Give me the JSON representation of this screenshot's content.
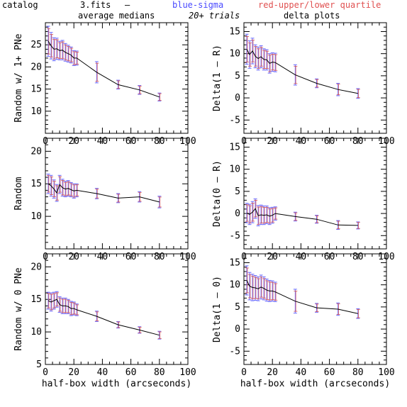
{
  "header": {
    "left": "catalog",
    "col1": "average medians",
    "fits": "3.fits",
    "dash": "–",
    "blue": "blue-sigma",
    "red": "red-upper/lower quartile",
    "trials": "20+ trials",
    "col2": "delta plots"
  },
  "colors": {
    "line": "#000000",
    "sigma": "#6a6aff",
    "quartile": "#d44a4a"
  },
  "chart_data": [
    {
      "type": "line",
      "ylabel": "Random w/ 1+ PNe",
      "xlabel": "",
      "xlim": [
        0,
        100
      ],
      "ylim": [
        5,
        30
      ],
      "xticks": [
        0,
        20,
        40,
        60,
        80,
        100
      ],
      "yticks": [
        10,
        15,
        20,
        25
      ],
      "x": [
        2,
        4,
        6,
        8,
        10,
        12,
        14,
        16,
        18,
        20,
        22,
        36,
        51,
        66,
        80
      ],
      "y": [
        25.8,
        24.8,
        24.0,
        24.1,
        23.7,
        23.8,
        23.3,
        23.0,
        22.7,
        22.0,
        22.0,
        18.8,
        16.0,
        14.8,
        13.2
      ],
      "err": [
        3.4,
        3.0,
        2.6,
        2.4,
        2.1,
        2.2,
        2.0,
        1.9,
        1.8,
        1.7,
        1.6,
        2.4,
        1.0,
        1.0,
        0.9
      ]
    },
    {
      "type": "line",
      "ylabel": "Delta(1 – R)",
      "xlabel": "",
      "xlim": [
        0,
        100
      ],
      "ylim": [
        -8,
        17
      ],
      "xticks": [
        0,
        20,
        40,
        60,
        80,
        100
      ],
      "yticks": [
        -5,
        0,
        5,
        10,
        15
      ],
      "x": [
        2,
        4,
        6,
        8,
        10,
        12,
        14,
        16,
        18,
        20,
        22,
        36,
        51,
        66,
        80
      ],
      "y": [
        11.0,
        9.8,
        10.6,
        9.4,
        8.9,
        9.3,
        8.7,
        8.6,
        7.8,
        8.1,
        8.0,
        5.2,
        3.3,
        1.9,
        1.0
      ],
      "err": [
        3.4,
        3.1,
        2.9,
        2.6,
        2.6,
        2.5,
        2.4,
        2.3,
        2.2,
        2.1,
        2.1,
        2.3,
        1.0,
        1.4,
        1.1
      ]
    },
    {
      "type": "line",
      "ylabel": "Random",
      "xlabel": "",
      "xlim": [
        0,
        100
      ],
      "ylim": [
        5,
        22
      ],
      "xticks": [
        0,
        20,
        40,
        60,
        80,
        100
      ],
      "yticks": [
        10,
        15,
        20
      ],
      "x": [
        2,
        4,
        6,
        8,
        10,
        12,
        14,
        16,
        18,
        20,
        22,
        36,
        51,
        66,
        80
      ],
      "y": [
        15.0,
        14.7,
        14.2,
        13.6,
        14.9,
        14.4,
        14.2,
        14.3,
        14.1,
        13.9,
        14.0,
        13.5,
        12.8,
        13.0,
        12.2
      ],
      "err": [
        1.5,
        1.6,
        1.4,
        1.3,
        1.4,
        1.3,
        1.2,
        1.2,
        1.1,
        1.1,
        1.0,
        0.8,
        0.7,
        0.8,
        0.9
      ]
    },
    {
      "type": "line",
      "ylabel": "Delta(0 – R)",
      "xlabel": "",
      "xlim": [
        0,
        100
      ],
      "ylim": [
        -8,
        17
      ],
      "xticks": [
        0,
        20,
        40,
        60,
        80,
        100
      ],
      "yticks": [
        -5,
        0,
        5,
        10,
        15
      ],
      "x": [
        2,
        4,
        6,
        8,
        10,
        12,
        14,
        16,
        18,
        20,
        22,
        36,
        51,
        66,
        80
      ],
      "y": [
        0.1,
        -0.2,
        0.3,
        1.1,
        -0.5,
        -0.3,
        -0.4,
        -0.3,
        -0.6,
        -0.4,
        0.0,
        -0.7,
        -1.3,
        -2.6,
        -2.7
      ],
      "err": [
        2.2,
        2.3,
        2.4,
        2.2,
        2.3,
        2.2,
        2.1,
        2.0,
        1.9,
        1.8,
        1.5,
        1.0,
        0.9,
        1.0,
        0.8
      ]
    },
    {
      "type": "line",
      "ylabel": "Random w/ 0 PNe",
      "xlabel": "half-box width (arcseconds)",
      "xlim": [
        0,
        100
      ],
      "ylim": [
        5,
        22
      ],
      "xticks": [
        0,
        20,
        40,
        60,
        80,
        100
      ],
      "yticks": [
        5,
        10,
        15,
        20
      ],
      "x": [
        2,
        4,
        6,
        8,
        10,
        12,
        14,
        16,
        18,
        20,
        22,
        36,
        51,
        66,
        80
      ],
      "y": [
        14.8,
        14.6,
        14.8,
        15.0,
        14.2,
        14.0,
        14.0,
        13.9,
        13.6,
        13.6,
        13.4,
        12.4,
        11.1,
        10.3,
        9.5
      ],
      "err": [
        1.3,
        1.4,
        1.3,
        1.2,
        1.2,
        1.2,
        1.2,
        1.1,
        1.1,
        1.0,
        0.9,
        0.8,
        0.5,
        0.5,
        0.6
      ]
    },
    {
      "type": "line",
      "ylabel": "Delta(1 – 0)",
      "xlabel": "half-box width (arcseconds)",
      "xlim": [
        0,
        100
      ],
      "ylim": [
        -8,
        17
      ],
      "xticks": [
        0,
        20,
        40,
        60,
        80,
        100
      ],
      "yticks": [
        -5,
        0,
        5,
        10,
        15
      ],
      "x": [
        2,
        4,
        6,
        8,
        10,
        12,
        14,
        16,
        18,
        20,
        22,
        36,
        51,
        66,
        80
      ],
      "y": [
        11.0,
        9.7,
        9.4,
        9.3,
        9.1,
        9.5,
        9.2,
        8.8,
        8.6,
        8.6,
        8.4,
        6.3,
        4.8,
        4.5,
        3.5
      ],
      "err": [
        3.3,
        3.1,
        3.0,
        2.8,
        2.7,
        2.7,
        2.6,
        2.5,
        2.4,
        2.3,
        2.2,
        2.7,
        1.0,
        1.4,
        1.1
      ]
    }
  ]
}
